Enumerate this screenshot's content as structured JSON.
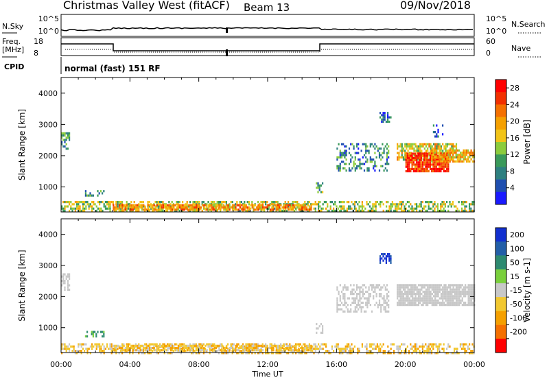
{
  "header": {
    "title": "Christmas Valley West (fitACF)",
    "beam": "Beam 13",
    "date": "09/Nov/2018"
  },
  "strip": {
    "nsky_label": "N.Sky",
    "nsearch_label": "N.Search",
    "noise_ticks": [
      "10^5",
      "10^0"
    ],
    "freq_label_1": "Freq.",
    "freq_label_2": "[MHz]",
    "freq_ticks": [
      "18",
      "8"
    ],
    "nave_label": "Nave",
    "nave_ticks": [
      "60",
      "0"
    ],
    "cpid_label": "CPID",
    "cpid_text": "normal (fast) 151 RF"
  },
  "colors": {
    "power": [
      "#1a1aff",
      "#1f4fb0",
      "#2e8080",
      "#3a9a5a",
      "#8ccc3c",
      "#f2c418",
      "#f5a000",
      "#f57000",
      "#f23000",
      "#ff0000"
    ],
    "velocity": [
      "#1230d0",
      "#235fa8",
      "#2d8a70",
      "#7ad03c",
      "#c8c8c8",
      "#f2c830",
      "#f5a000",
      "#f57000",
      "#ff0000"
    ],
    "ground_scatter": "#b4b4b4"
  },
  "chart_data": [
    {
      "type": "heatmap",
      "name": "power-panel",
      "ylabel": "Slant Range [km]",
      "xlabel": "",
      "x_ticks": [
        "00:00",
        "04:00",
        "08:00",
        "12:00",
        "16:00",
        "20:00",
        "00:00"
      ],
      "x_tick_hours": [
        0,
        4,
        8,
        12,
        16,
        20,
        24
      ],
      "y_ticks": [
        1000,
        2000,
        3000,
        4000
      ],
      "ylim": [
        200,
        4500
      ],
      "xlim": [
        0,
        24
      ],
      "colorbar_label": "Power [dB]",
      "colorbar_ticks": [
        4,
        8,
        12,
        16,
        20,
        24,
        28
      ],
      "colorbar_range": [
        0,
        30
      ],
      "regions": [
        {
          "t0": 0.0,
          "t1": 24.0,
          "r0": 200,
          "r1": 550,
          "value": 14,
          "density": 0.55
        },
        {
          "t0": 3.0,
          "t1": 14.5,
          "r0": 250,
          "r1": 450,
          "value": 20,
          "density": 0.75
        },
        {
          "t0": 0.0,
          "t1": 0.5,
          "r0": 2250,
          "r1": 2750,
          "value": 9,
          "density": 0.6
        },
        {
          "t0": 1.3,
          "t1": 2.5,
          "r0": 700,
          "r1": 900,
          "value": 8,
          "density": 0.4
        },
        {
          "t0": 14.8,
          "t1": 15.2,
          "r0": 850,
          "r1": 1150,
          "value": 10,
          "density": 0.6
        },
        {
          "t0": 16.0,
          "t1": 19.0,
          "r0": 1500,
          "r1": 2400,
          "value": 8,
          "density": 0.4
        },
        {
          "t0": 19.5,
          "t1": 23.0,
          "r0": 1900,
          "r1": 2400,
          "value": 16,
          "density": 0.7
        },
        {
          "t0": 20.0,
          "t1": 22.5,
          "r0": 1500,
          "r1": 2100,
          "value": 26,
          "density": 0.9
        },
        {
          "t0": 21.5,
          "t1": 24.0,
          "r0": 1800,
          "r1": 2200,
          "value": 18,
          "density": 0.7
        },
        {
          "t0": 18.5,
          "t1": 19.2,
          "r0": 3100,
          "r1": 3400,
          "value": 6,
          "density": 0.5
        },
        {
          "t0": 21.6,
          "t1": 22.2,
          "r0": 2600,
          "r1": 3000,
          "value": 6,
          "density": 0.4
        }
      ]
    },
    {
      "type": "heatmap",
      "name": "velocity-panel",
      "ylabel": "Slant Range [km]",
      "xlabel": "Time UT",
      "x_ticks": [
        "00:00",
        "04:00",
        "08:00",
        "12:00",
        "16:00",
        "20:00",
        "00:00"
      ],
      "x_tick_hours": [
        0,
        4,
        8,
        12,
        16,
        20,
        24
      ],
      "y_ticks": [
        1000,
        2000,
        3000,
        4000
      ],
      "ylim": [
        200,
        4500
      ],
      "xlim": [
        0,
        24
      ],
      "colorbar_label": "Velocity [m s-1]",
      "colorbar_ticks": [
        "200",
        "100",
        "50",
        "15",
        "-15",
        "-50",
        "-100",
        "-200"
      ],
      "regions": [
        {
          "t0": 0.0,
          "t1": 24.0,
          "r0": 200,
          "r1": 500,
          "value": -30,
          "density": 0.5
        },
        {
          "t0": 3.0,
          "t1": 14.5,
          "r0": 250,
          "r1": 450,
          "value": -40,
          "density": 0.75
        },
        {
          "t0": 0.0,
          "t1": 0.5,
          "r0": 2250,
          "r1": 2750,
          "value": 0,
          "density": 0.55
        },
        {
          "t0": 1.3,
          "t1": 2.5,
          "r0": 700,
          "r1": 900,
          "value": 60,
          "density": 0.4
        },
        {
          "t0": 14.8,
          "t1": 15.2,
          "r0": 850,
          "r1": 1150,
          "value": 0,
          "density": 0.6
        },
        {
          "t0": 16.0,
          "t1": 19.0,
          "r0": 1500,
          "r1": 2400,
          "value": 0,
          "density": 0.45
        },
        {
          "t0": 19.5,
          "t1": 24.0,
          "r0": 1700,
          "r1": 2400,
          "value": 0,
          "density": 0.85
        },
        {
          "t0": 18.5,
          "t1": 19.2,
          "r0": 3100,
          "r1": 3400,
          "value": 220,
          "density": 0.5
        }
      ]
    }
  ]
}
